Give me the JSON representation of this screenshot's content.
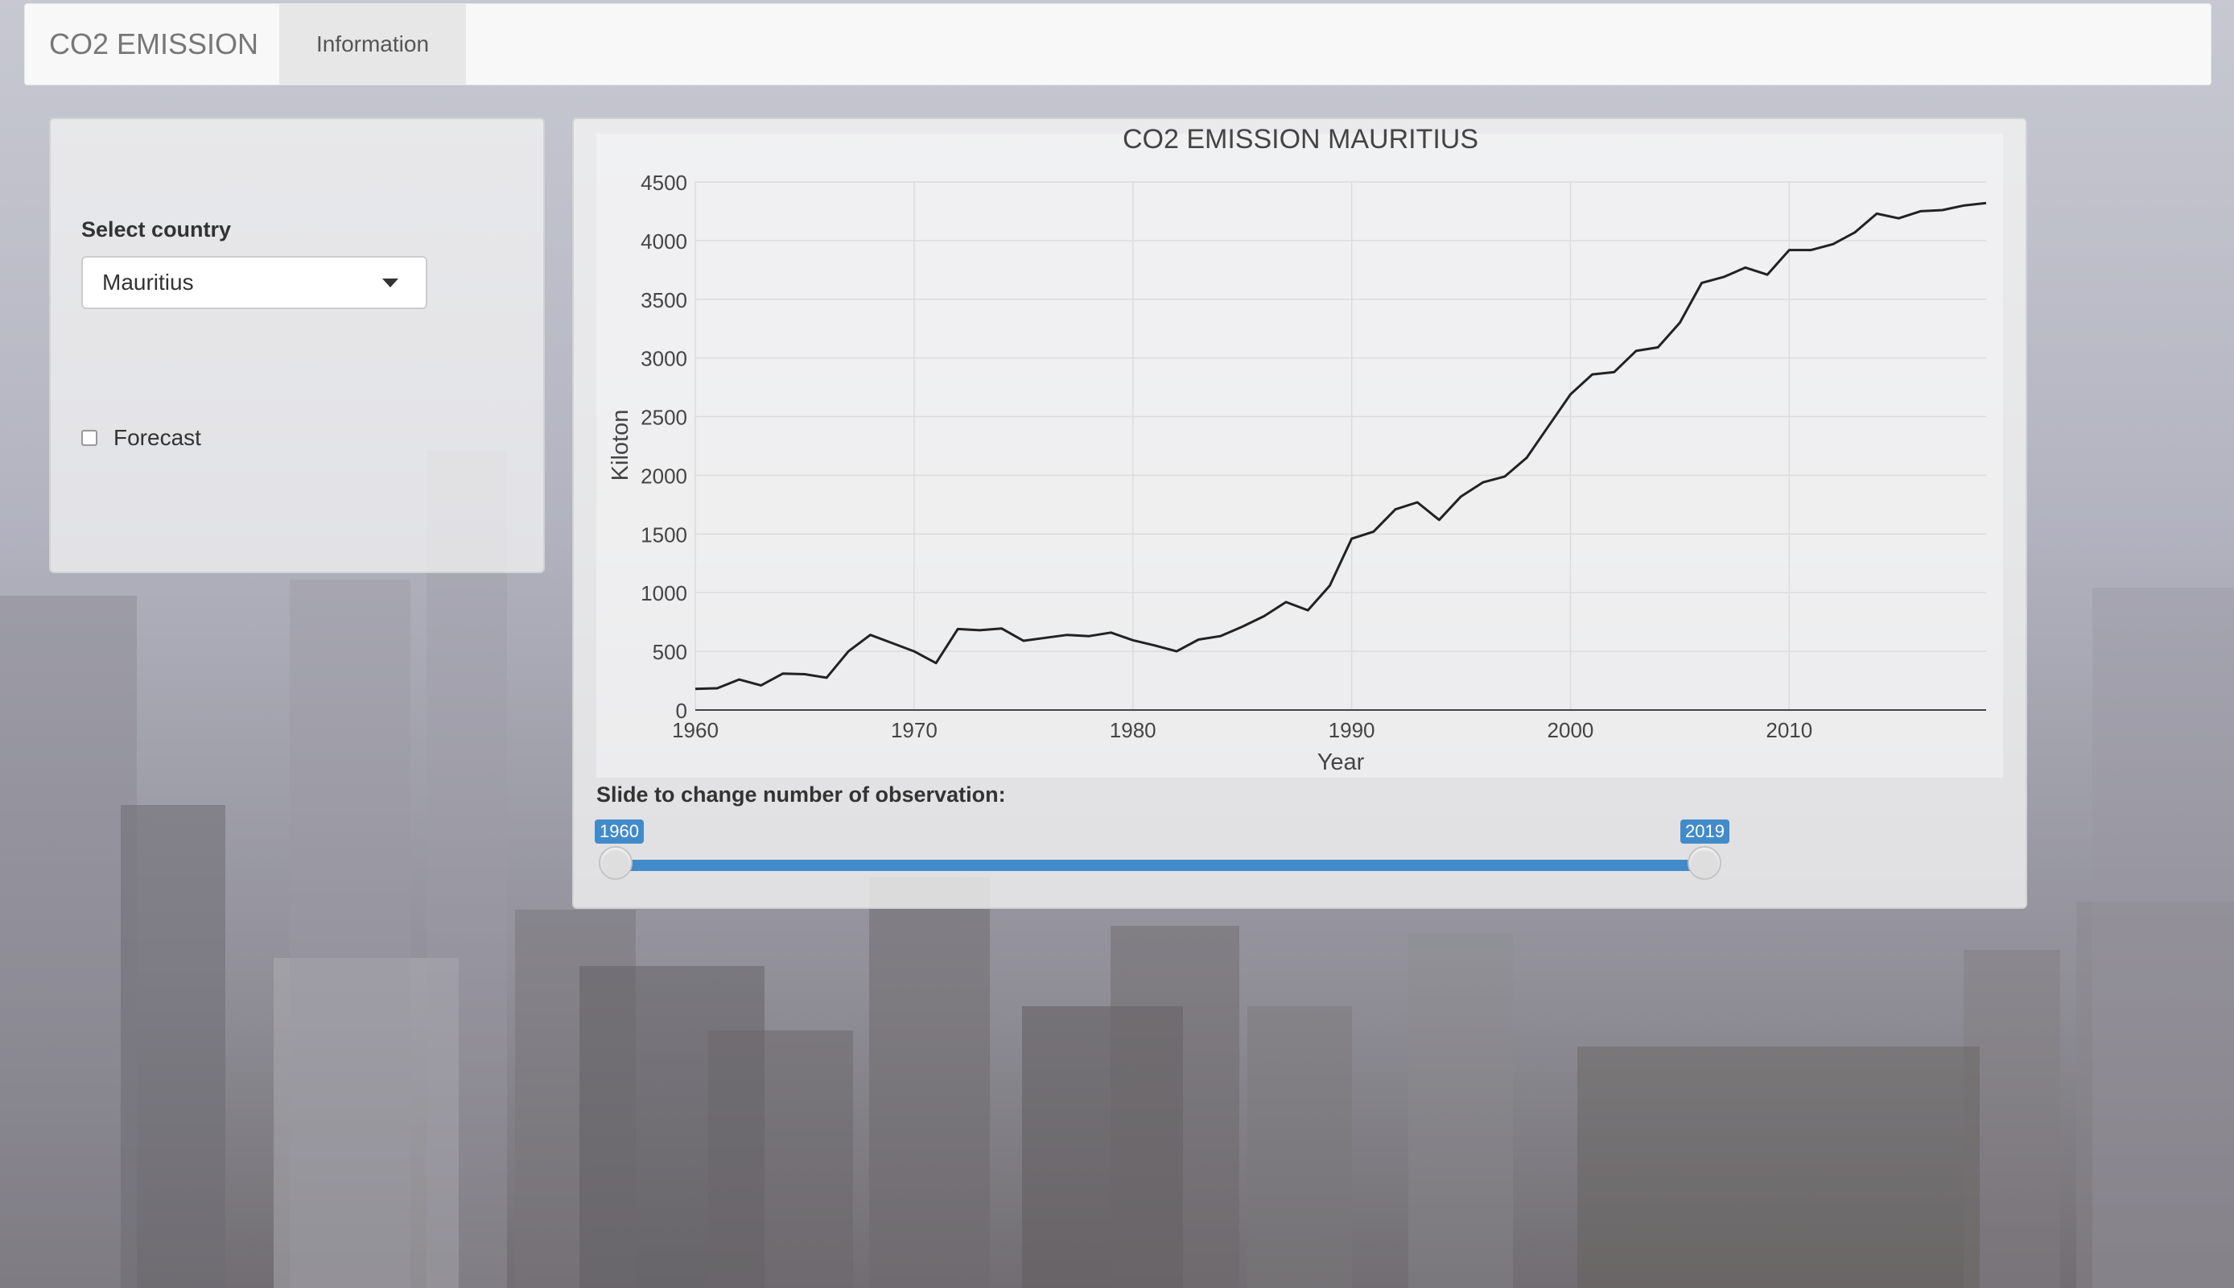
{
  "navbar": {
    "brand": "CO2 EMISSION",
    "tabs": [
      {
        "label": "Information"
      }
    ]
  },
  "sidebar": {
    "select_label": "Select country",
    "selected_country": "Mauritius",
    "forecast_label": "Forecast",
    "forecast_checked": false
  },
  "slider": {
    "label": "Slide to change number of observation:",
    "min_label": "1960",
    "max_label": "2019",
    "range": [
      1960,
      2019
    ]
  },
  "colors": {
    "accent": "#428bca",
    "line": "#222222"
  },
  "chart_data": {
    "type": "line",
    "title": "CO2 EMISSION  MAURITIUS",
    "xlabel": "Year",
    "ylabel": "Kiloton",
    "xlim": [
      1960,
      2019
    ],
    "ylim": [
      0,
      4500
    ],
    "xticks": [
      1960,
      1970,
      1980,
      1990,
      2000,
      2010
    ],
    "yticks": [
      0,
      500,
      1000,
      1500,
      2000,
      2500,
      3000,
      3500,
      4000,
      4500
    ],
    "grid": true,
    "series": [
      {
        "name": "CO2 emission",
        "x": [
          1960,
          1961,
          1962,
          1963,
          1964,
          1965,
          1966,
          1967,
          1968,
          1969,
          1970,
          1971,
          1972,
          1973,
          1974,
          1975,
          1976,
          1977,
          1978,
          1979,
          1980,
          1981,
          1982,
          1983,
          1984,
          1985,
          1986,
          1987,
          1988,
          1989,
          1990,
          1991,
          1992,
          1993,
          1994,
          1995,
          1996,
          1997,
          1998,
          1999,
          2000,
          2001,
          2002,
          2003,
          2004,
          2005,
          2006,
          2007,
          2008,
          2009,
          2010,
          2011,
          2012,
          2013,
          2014,
          2015,
          2016,
          2017,
          2018,
          2019
        ],
        "y": [
          180,
          185,
          260,
          210,
          310,
          305,
          275,
          500,
          640,
          570,
          500,
          400,
          690,
          680,
          695,
          590,
          615,
          640,
          630,
          660,
          595,
          550,
          500,
          600,
          630,
          710,
          800,
          920,
          850,
          1060,
          1460,
          1520,
          1710,
          1770,
          1620,
          1820,
          1940,
          1990,
          2150,
          2420,
          2690,
          2860,
          2880,
          3060,
          3090,
          3300,
          3640,
          3690,
          3770,
          3710,
          3920,
          3920,
          3970,
          4070,
          4230,
          4190,
          4250,
          4260,
          4300,
          4320
        ]
      }
    ]
  }
}
